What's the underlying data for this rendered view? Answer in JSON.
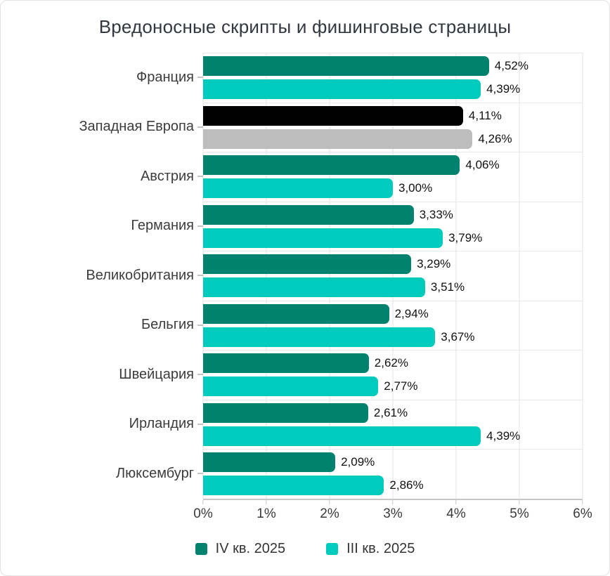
{
  "chart_data": {
    "type": "bar",
    "orientation": "horizontal-grouped",
    "title": "Вредоносные скрипты и фишинговые страницы",
    "categories": [
      "Франция",
      "Западная Европа",
      "Австрия",
      "Германия",
      "Великобритания",
      "Бельгия",
      "Швейцария",
      "Ирландия",
      "Люксембург"
    ],
    "series": [
      {
        "name": "IV кв. 2025",
        "color": "#00826F",
        "values": [
          4.52,
          4.11,
          4.06,
          3.33,
          3.29,
          2.94,
          2.62,
          2.61,
          2.09
        ],
        "value_labels": [
          "4,52%",
          "4,11%",
          "4,06%",
          "3,33%",
          "3,29%",
          "2,94%",
          "2,62%",
          "2,61%",
          "2,09%"
        ]
      },
      {
        "name": "III кв. 2025",
        "color": "#00CBBC",
        "values": [
          4.39,
          4.26,
          3.0,
          3.79,
          3.51,
          3.67,
          2.77,
          4.39,
          2.86
        ],
        "value_labels": [
          "4,39%",
          "4,26%",
          "3,00%",
          "3,79%",
          "3,51%",
          "3,67%",
          "2,77%",
          "4,39%",
          "2,86%"
        ]
      }
    ],
    "category_color_overrides": {
      "Западная Европа": [
        "#000000",
        "#BDBDBD"
      ]
    },
    "xlim": [
      0,
      6
    ],
    "x_ticks": [
      "0%",
      "1%",
      "2%",
      "3%",
      "4%",
      "5%",
      "6%"
    ],
    "grid": true,
    "legend_position": "bottom",
    "colors": {
      "grid": "#E3E3E3",
      "axis": "#C7C7C7",
      "band_separator": "#E8E8E8",
      "category_label": "#3C3C3C",
      "tick_label": "#3A3A3A",
      "value_label": "#111111",
      "title": "#333740"
    }
  }
}
